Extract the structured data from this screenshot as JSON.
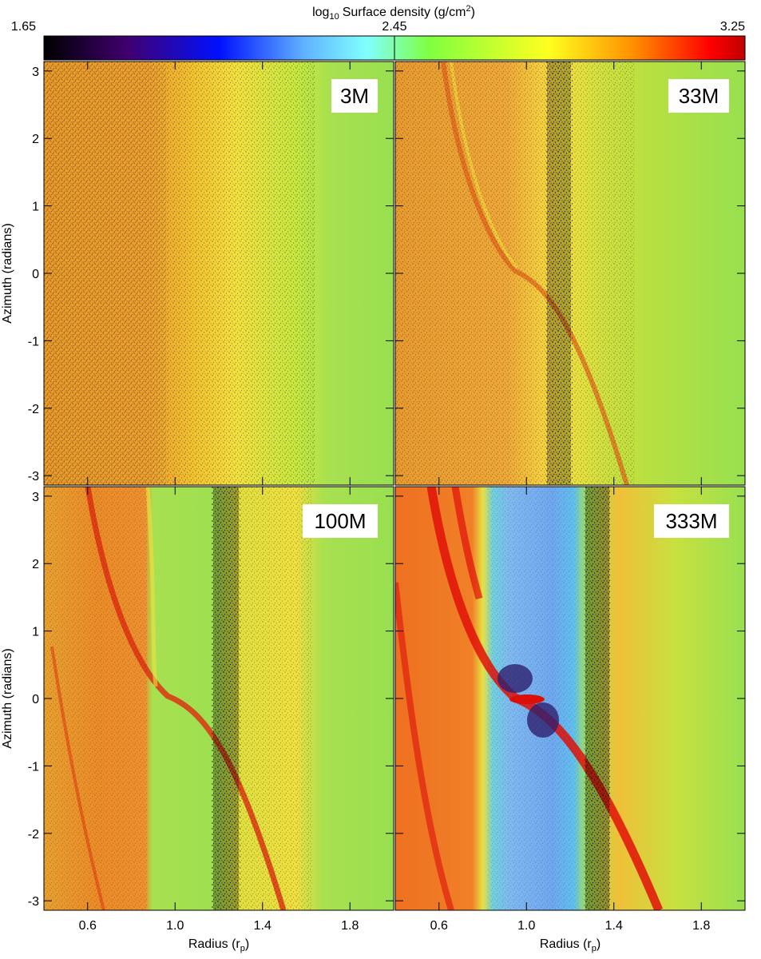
{
  "chart_data": {
    "type": "heatmap-panels",
    "colorbar": {
      "title": {
        "prefix": "log",
        "sub": "10",
        "text": "Surface density (g/cm",
        "sup": "2",
        "suffix": ")"
      },
      "clim": [
        1.65,
        3.25
      ],
      "ticks": [
        1.65,
        2.45,
        3.25
      ]
    },
    "xlabel": {
      "text": "Radius (r",
      "sub": "p",
      "suffix": ")"
    },
    "ylabel": "Azimuth (radians)",
    "xlim": [
      0.4,
      2.0
    ],
    "xticks": [
      0.6,
      {
        "value": 1.0,
        "label": "1.0"
      },
      1.4,
      1.8
    ],
    "ylim": [
      -3.14,
      3.14
    ],
    "yticks": [
      -3,
      -2,
      -1,
      0,
      1,
      2,
      3
    ],
    "panels": [
      {
        "label": "3M"
      },
      {
        "label": "33M"
      },
      {
        "label": "100M"
      },
      {
        "label": "333M"
      }
    ]
  }
}
